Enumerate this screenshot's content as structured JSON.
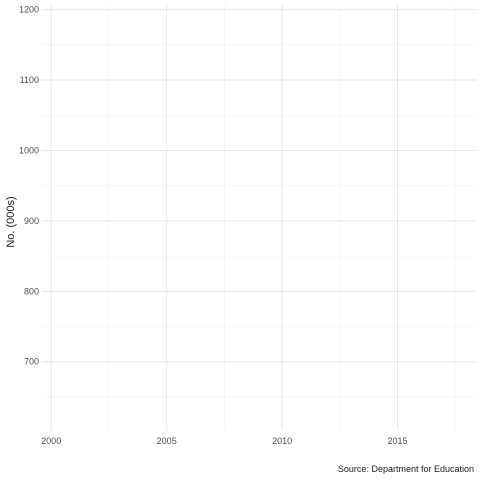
{
  "chart_data": {
    "type": "line",
    "title": "",
    "xlabel": "",
    "ylabel": "No. (000s)",
    "caption": "Source: Department for Education",
    "xlim": [
      1999.6,
      2018.4
    ],
    "ylim": [
      603,
      1208
    ],
    "x_ticks": [
      2000,
      2005,
      2010,
      2015
    ],
    "x_tick_labels": [
      "2000",
      "2005",
      "2010",
      "2015"
    ],
    "x_minor_ticks": [
      2002.5,
      2007.5,
      2012.5,
      2017.5
    ],
    "y_ticks": [
      700,
      800,
      900,
      1000,
      1100,
      1200
    ],
    "y_tick_labels": [
      "700",
      "800",
      "900",
      "1000",
      "1100",
      "1200"
    ],
    "y_minor_ticks": [
      650,
      750,
      850,
      950,
      1050,
      1150
    ],
    "grid": true,
    "series": []
  }
}
